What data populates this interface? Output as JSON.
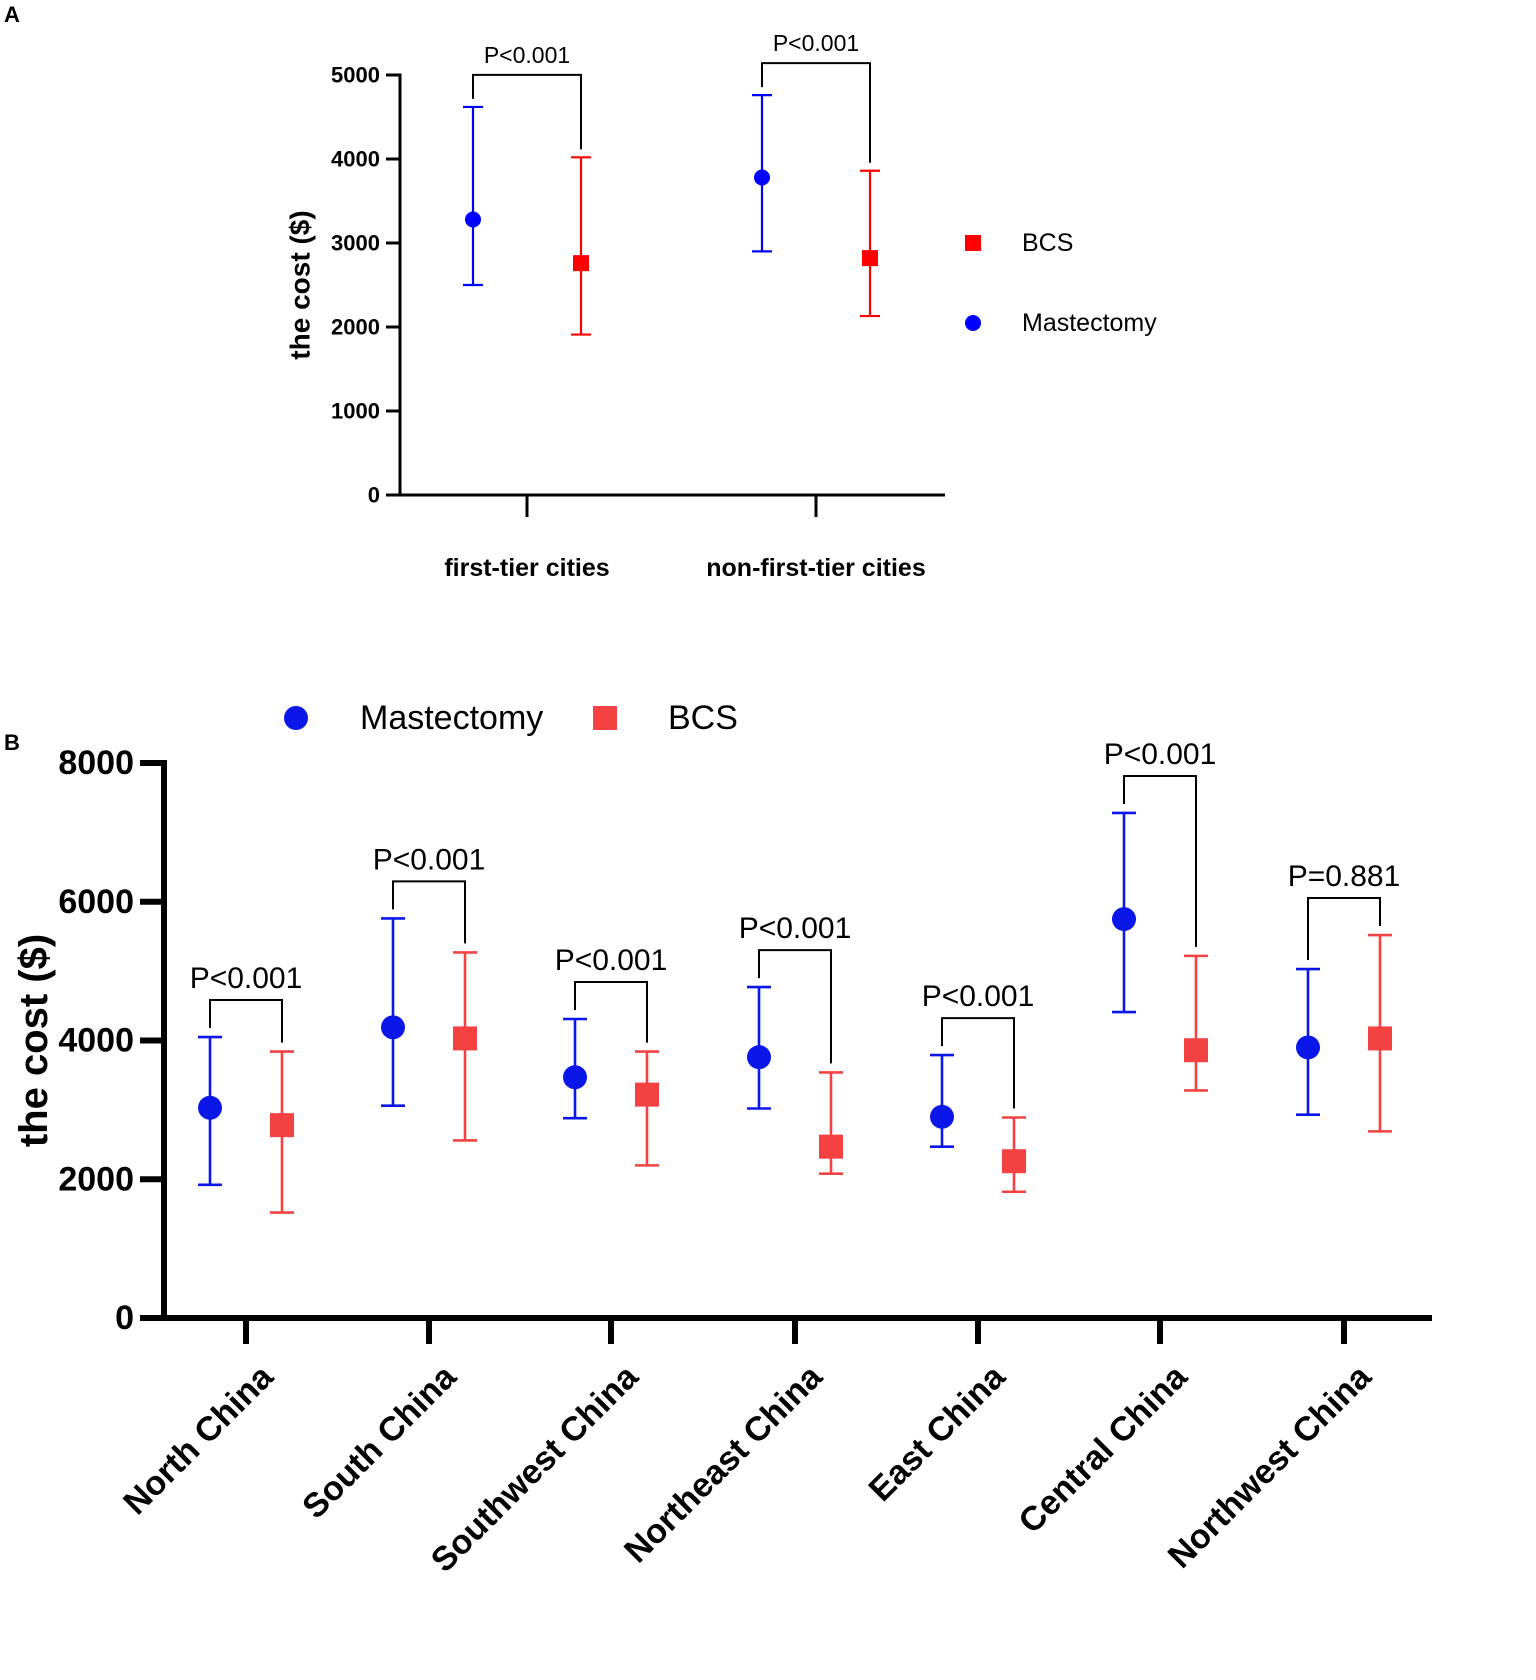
{
  "colors": {
    "mastectomy_a": "#0000ff",
    "bcs_a": "#ff0000",
    "mastectomy_b": "#0a17e8",
    "bcs_b": "#f44242",
    "axis": "#000000"
  },
  "chart_data": [
    {
      "panel": "A",
      "type": "scatter",
      "subtype": "mean-with-error-bars",
      "title": "",
      "xlabel": "",
      "ylabel": "the cost ($)",
      "ylim": [
        0,
        5000
      ],
      "yticks": [
        0,
        1000,
        2000,
        3000,
        4000,
        5000
      ],
      "categories": [
        "first-tier cities",
        "non-first-tier cities"
      ],
      "legend_position": "right",
      "legend_order": [
        "BCS",
        "Mastectomy"
      ],
      "series": [
        {
          "name": "Mastectomy",
          "marker": "circle",
          "color": "#0000ff",
          "values": [
            3280,
            3780
          ],
          "lower": [
            2500,
            2900
          ],
          "upper": [
            4620,
            4760
          ]
        },
        {
          "name": "BCS",
          "marker": "square",
          "color": "#ff0000",
          "values": [
            2760,
            2820
          ],
          "lower": [
            1910,
            2130
          ],
          "upper": [
            4020,
            3860
          ]
        }
      ],
      "annotations": [
        {
          "category": "first-tier cities",
          "text": "P<0.001"
        },
        {
          "category": "non-first-tier cities",
          "text": "P<0.001"
        }
      ]
    },
    {
      "panel": "B",
      "type": "scatter",
      "subtype": "mean-with-error-bars",
      "title": "",
      "xlabel": "",
      "ylabel": "the cost ($)",
      "ylim": [
        0,
        8000
      ],
      "yticks": [
        0,
        2000,
        4000,
        6000,
        8000
      ],
      "categories": [
        "North China",
        "South China",
        "Southwest China",
        "Northeast China",
        "East China",
        "Central China",
        "Northwest China"
      ],
      "legend_position": "top",
      "legend_order": [
        "Mastectomy",
        "BCS"
      ],
      "series": [
        {
          "name": "Mastectomy",
          "marker": "circle",
          "color": "#0a17e8",
          "values": [
            3030,
            4190,
            3470,
            3760,
            2900,
            5750,
            3900
          ],
          "lower": [
            1920,
            3060,
            2880,
            3020,
            2470,
            4410,
            2930
          ],
          "upper": [
            4050,
            5760,
            4310,
            4770,
            3790,
            7280,
            5030
          ]
        },
        {
          "name": "BCS",
          "marker": "square",
          "color": "#f44242",
          "values": [
            2780,
            4030,
            3220,
            2470,
            2260,
            3860,
            4030
          ],
          "lower": [
            1520,
            2560,
            2200,
            2080,
            1820,
            3280,
            2690
          ],
          "upper": [
            3840,
            5270,
            3840,
            3540,
            2890,
            5220,
            5520
          ]
        }
      ],
      "annotations": [
        {
          "category": "North China",
          "text": "P<0.001"
        },
        {
          "category": "South China",
          "text": "P<0.001"
        },
        {
          "category": "Southwest China",
          "text": "P<0.001"
        },
        {
          "category": "Northeast China",
          "text": "P<0.001"
        },
        {
          "category": "East China",
          "text": "P<0.001"
        },
        {
          "category": "Central China",
          "text": "P<0.001"
        },
        {
          "category": "Northwest China",
          "text": "P=0.881"
        }
      ]
    }
  ]
}
